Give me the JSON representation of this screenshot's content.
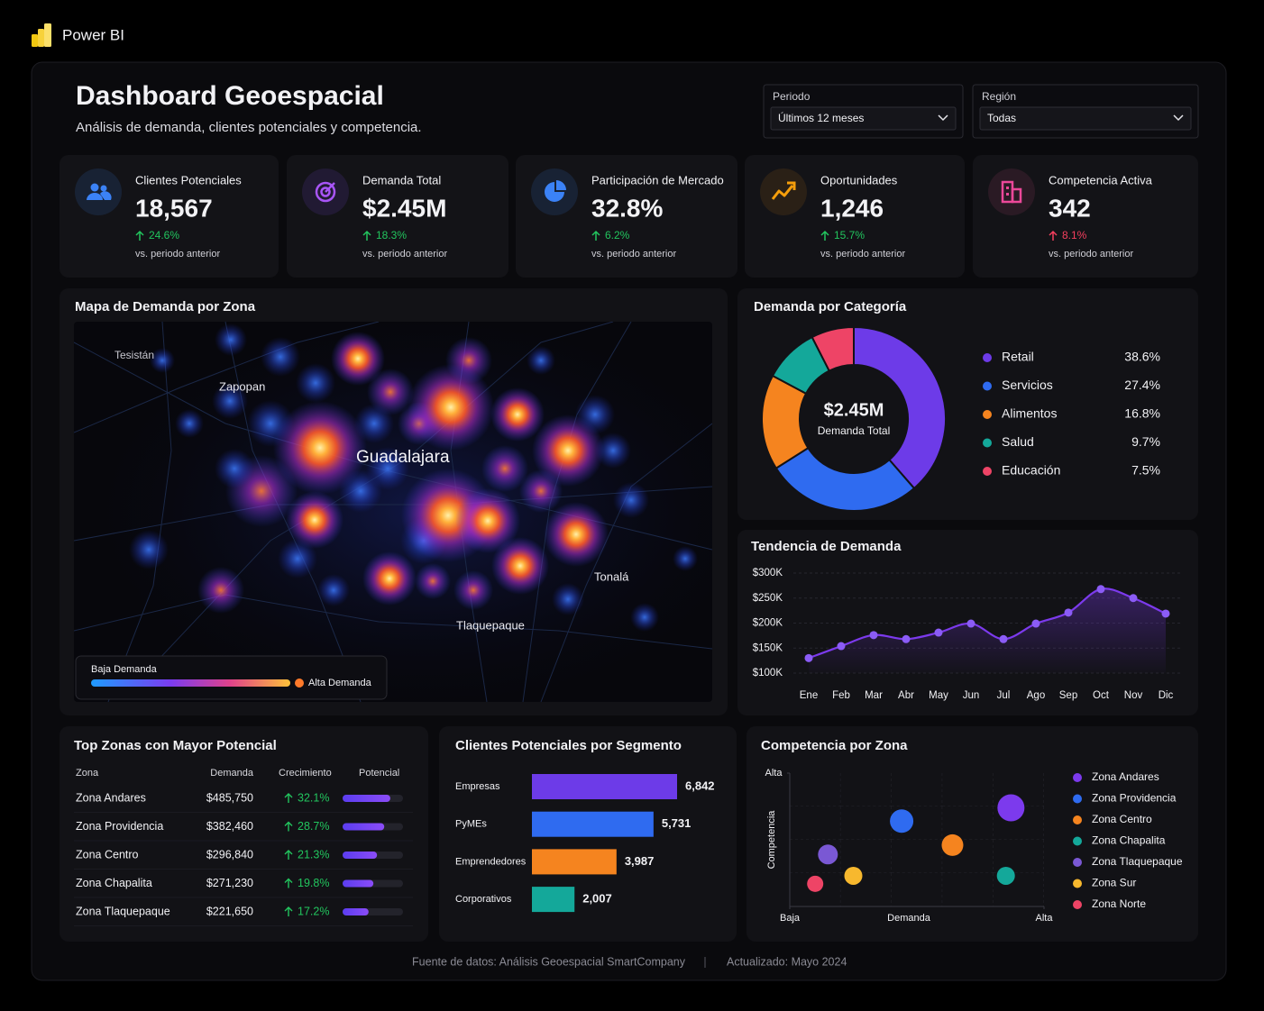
{
  "app": {
    "name": "Power BI"
  },
  "header": {
    "title": "Dashboard Geoespacial",
    "subtitle": "Análisis de demanda, clientes potenciales y competencia."
  },
  "filters": [
    {
      "label": "Periodo",
      "value": "Últimos 12 meses"
    },
    {
      "label": "Región",
      "value": "Todas"
    }
  ],
  "kpis": [
    {
      "title": "Clientes Potenciales",
      "value": "18,567",
      "change": "24.6%",
      "change_color": "#22c55e",
      "note": "vs. periodo anterior"
    },
    {
      "title": "Demanda Total",
      "value": "$2.45M",
      "change": "18.3%",
      "change_color": "#22c55e",
      "note": "vs. periodo anterior"
    },
    {
      "title": "Participación de Mercado",
      "value": "32.8%",
      "change": "6.2%",
      "change_color": "#22c55e",
      "note": "vs. periodo anterior"
    },
    {
      "title": "Oportunidades",
      "value": "1,246",
      "change": "15.7%",
      "change_color": "#22c55e",
      "note": "vs. periodo anterior"
    },
    {
      "title": "Competencia Activa",
      "value": "342",
      "change": "8.1%",
      "change_color": "#f43f5e",
      "note": "vs. periodo anterior"
    }
  ],
  "map": {
    "title": "Mapa de Demanda por Zona",
    "places": [
      "Tesistán",
      "Zapopan",
      "Guadalajara",
      "Tonalá",
      "Tlaquepaque"
    ],
    "legend_low": "Baja Demanda",
    "legend_high": "Alta Demanda"
  },
  "table": {
    "title": "Top Zonas con Mayor Potencial",
    "headers": [
      "Zona",
      "Demanda",
      "Crecimiento",
      "Potencial"
    ],
    "potential_lim": [
      0,
      100
    ],
    "rows": [
      [
        "Zona Andares",
        "$485,750",
        "32.1%",
        79
      ],
      [
        "Zona Providencia",
        "$382,460",
        "28.7%",
        69
      ],
      [
        "Zona Centro",
        "$296,840",
        "21.3%",
        57
      ],
      [
        "Zona Chapalita",
        "$271,230",
        "19.8%",
        51
      ],
      [
        "Zona Tlaquepaque",
        "$221,650",
        "17.2%",
        43
      ]
    ]
  },
  "chart_data": [
    {
      "type": "pie",
      "title": "Demanda por Categoría",
      "center_label": "$2.45M",
      "center_sublabel": "Demanda Total",
      "categories": [
        "Retail",
        "Servicios",
        "Alimentos",
        "Salud",
        "Educación"
      ],
      "values": [
        38.6,
        27.4,
        16.8,
        9.7,
        7.5
      ],
      "value_labels": [
        "38.6%",
        "27.4%",
        "16.8%",
        "9.7%",
        "7.5%"
      ],
      "colors": [
        "#6d3be8",
        "#2f6bf0",
        "#f5841f",
        "#14a89a",
        "#ee4466"
      ]
    },
    {
      "type": "line",
      "title": "Tendencia de Demanda",
      "categories": [
        "Ene",
        "Feb",
        "Mar",
        "Abr",
        "May",
        "Jun",
        "Jul",
        "Ago",
        "Sep",
        "Oct",
        "Nov",
        "Dic"
      ],
      "values": [
        130000,
        154000,
        176000,
        168000,
        181000,
        199000,
        168000,
        199000,
        221000,
        268000,
        250000,
        219000
      ],
      "color": "#7c3aed",
      "ylim": [
        100000,
        300000
      ],
      "yticks": [
        {
          "value": 100000,
          "label": "$100K"
        },
        {
          "value": 150000,
          "label": "$150K"
        },
        {
          "value": 200000,
          "label": "$200K"
        },
        {
          "value": 250000,
          "label": "$250K"
        },
        {
          "value": 300000,
          "label": "$300K"
        }
      ],
      "grid": true
    },
    {
      "type": "bar",
      "orientation": "horizontal",
      "title": "Clientes Potenciales por Segmento",
      "categories": [
        "Empresas",
        "PyMEs",
        "Emprendedores",
        "Corporativos"
      ],
      "values": [
        6842,
        5731,
        3987,
        2007
      ],
      "value_labels": [
        "6,842",
        "5,731",
        "3,987",
        "2,007"
      ],
      "colors": [
        "#6d3be8",
        "#2f6bf0",
        "#f5841f",
        "#14a89a"
      ]
    },
    {
      "type": "scatter",
      "title": "Competencia por Zona",
      "x_label": "Demanda",
      "y_label": "Competencia",
      "xlim": [
        0,
        10
      ],
      "ylim": [
        0,
        10
      ],
      "xticks": [
        {
          "value": 0,
          "label": "Baja"
        },
        {
          "value": 10,
          "label": "Alta"
        }
      ],
      "yticks": [
        {
          "value": 10,
          "label": "Alta"
        }
      ],
      "series": [
        {
          "name": "Zona Andares",
          "color": "#7c3aed",
          "x": [
            8.7
          ],
          "y": [
            7.4
          ],
          "size": [
            15
          ]
        },
        {
          "name": "Zona Providencia",
          "color": "#2f6bf0",
          "x": [
            4.4
          ],
          "y": [
            6.4
          ],
          "size": [
            13
          ]
        },
        {
          "name": "Zona Centro",
          "color": "#f5841f",
          "x": [
            6.4
          ],
          "y": [
            4.6
          ],
          "size": [
            12
          ]
        },
        {
          "name": "Zona Chapalita",
          "color": "#14a89a",
          "x": [
            8.5
          ],
          "y": [
            2.3
          ],
          "size": [
            10
          ]
        },
        {
          "name": "Zona Tlaquepaque",
          "color": "#7a58d4",
          "x": [
            1.5
          ],
          "y": [
            3.9
          ],
          "size": [
            11
          ]
        },
        {
          "name": "Zona Sur",
          "color": "#f7b82e",
          "x": [
            2.5
          ],
          "y": [
            2.3
          ],
          "size": [
            10
          ]
        },
        {
          "name": "Zona Norte",
          "color": "#ee4466",
          "x": [
            1.0
          ],
          "y": [
            1.7
          ],
          "size": [
            9
          ]
        }
      ]
    }
  ],
  "footer": {
    "source": "Fuente de datos: Análisis Geoespacial SmartCompany",
    "updated": "Actualizado: Mayo 2024"
  }
}
